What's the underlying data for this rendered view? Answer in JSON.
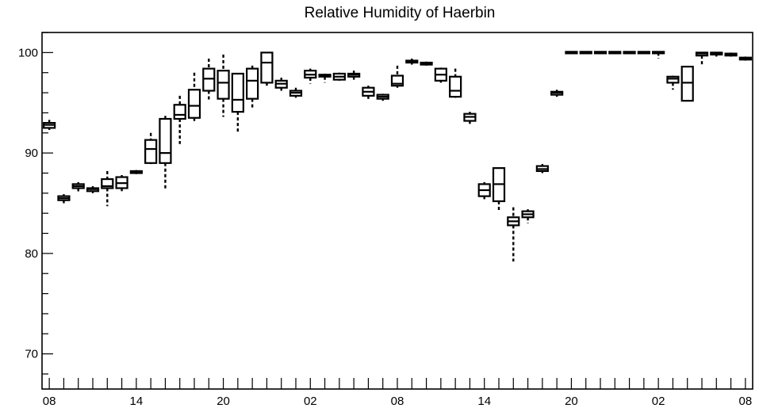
{
  "chart_data": {
    "type": "box",
    "title": "Relative Humidity of Haerbin",
    "xlabel": "",
    "ylabel": "",
    "ylim": [
      66.5,
      102
    ],
    "xlim": [
      -0.5,
      48.5
    ],
    "grid": false,
    "y_ticks": [
      70,
      80,
      90,
      100
    ],
    "x_tick_labels": [
      {
        "i": 0,
        "label": "08"
      },
      {
        "i": 6,
        "label": "14"
      },
      {
        "i": 12,
        "label": "20"
      },
      {
        "i": 18,
        "label": "02"
      },
      {
        "i": 24,
        "label": "08"
      },
      {
        "i": 30,
        "label": "14"
      },
      {
        "i": 36,
        "label": "20"
      },
      {
        "i": 42,
        "label": "02"
      },
      {
        "i": 48,
        "label": "08"
      }
    ],
    "boxes": [
      {
        "i": 0,
        "min": 92.3,
        "q1": 92.5,
        "med": 92.8,
        "q3": 93.0,
        "max": 93.3
      },
      {
        "i": 1,
        "min": 85.0,
        "q1": 85.3,
        "med": 85.5,
        "q3": 85.7,
        "max": 85.9
      },
      {
        "i": 2,
        "min": 86.0,
        "q1": 86.5,
        "med": 86.7,
        "q3": 86.9,
        "max": 87.1
      },
      {
        "i": 3,
        "min": 86.0,
        "q1": 86.2,
        "med": 86.4,
        "q3": 86.5,
        "max": 86.7
      },
      {
        "i": 4,
        "min": 84.7,
        "q1": 86.5,
        "med": 86.7,
        "q3": 87.4,
        "max": 88.2
      },
      {
        "i": 5,
        "min": 86.2,
        "q1": 86.5,
        "med": 87.0,
        "q3": 87.6,
        "max": 87.8
      },
      {
        "i": 6,
        "min": 87.9,
        "q1": 88.0,
        "med": 88.1,
        "q3": 88.2,
        "max": 88.3
      },
      {
        "i": 7,
        "min": 88.9,
        "q1": 89.0,
        "med": 90.4,
        "q3": 91.3,
        "max": 92.0
      },
      {
        "i": 8,
        "min": 86.4,
        "q1": 89.0,
        "med": 90.0,
        "q3": 93.4,
        "max": 93.7
      },
      {
        "i": 9,
        "min": 90.9,
        "q1": 93.4,
        "med": 93.8,
        "q3": 94.8,
        "max": 95.7
      },
      {
        "i": 10,
        "min": 93.0,
        "q1": 93.5,
        "med": 94.7,
        "q3": 96.3,
        "max": 98.0
      },
      {
        "i": 11,
        "min": 95.2,
        "q1": 96.2,
        "med": 97.4,
        "q3": 98.4,
        "max": 99.4
      },
      {
        "i": 12,
        "min": 93.6,
        "q1": 95.4,
        "med": 97.0,
        "q3": 98.2,
        "max": 99.8
      },
      {
        "i": 13,
        "min": 92.1,
        "q1": 94.1,
        "med": 95.3,
        "q3": 97.9,
        "max": 97.9
      },
      {
        "i": 14,
        "min": 94.3,
        "q1": 95.4,
        "med": 97.2,
        "q3": 98.4,
        "max": 98.7
      },
      {
        "i": 15,
        "min": 96.7,
        "q1": 97.0,
        "med": 99.0,
        "q3": 100.0,
        "max": 100.0
      },
      {
        "i": 16,
        "min": 96.2,
        "q1": 96.5,
        "med": 96.9,
        "q3": 97.2,
        "max": 97.5
      },
      {
        "i": 17,
        "min": 95.5,
        "q1": 95.7,
        "med": 96.0,
        "q3": 96.2,
        "max": 96.5
      },
      {
        "i": 18,
        "min": 96.9,
        "q1": 97.5,
        "med": 97.8,
        "q3": 98.2,
        "max": 98.4
      },
      {
        "i": 19,
        "min": 97.0,
        "q1": 97.6,
        "med": 97.7,
        "q3": 97.8,
        "max": 97.9
      },
      {
        "i": 20,
        "min": 97.2,
        "q1": 97.3,
        "med": 97.6,
        "q3": 97.9,
        "max": 98.0
      },
      {
        "i": 21,
        "min": 97.3,
        "q1": 97.6,
        "med": 97.8,
        "q3": 97.9,
        "max": 98.2
      },
      {
        "i": 22,
        "min": 95.3,
        "q1": 95.7,
        "med": 96.1,
        "q3": 96.5,
        "max": 96.7
      },
      {
        "i": 23,
        "min": 95.2,
        "q1": 95.4,
        "med": 95.6,
        "q3": 95.8,
        "max": 95.9
      },
      {
        "i": 24,
        "min": 96.5,
        "q1": 96.7,
        "med": 96.9,
        "q3": 97.7,
        "max": 98.7
      },
      {
        "i": 25,
        "min": 98.8,
        "q1": 99.0,
        "med": 99.1,
        "q3": 99.2,
        "max": 99.4
      },
      {
        "i": 26,
        "min": 98.7,
        "q1": 98.8,
        "med": 98.9,
        "q3": 99.0,
        "max": 99.1
      },
      {
        "i": 27,
        "min": 97.0,
        "q1": 97.2,
        "med": 97.8,
        "q3": 98.4,
        "max": 98.5
      },
      {
        "i": 28,
        "min": 95.5,
        "q1": 95.6,
        "med": 96.2,
        "q3": 97.6,
        "max": 98.4
      },
      {
        "i": 29,
        "min": 92.9,
        "q1": 93.2,
        "med": 93.6,
        "q3": 93.9,
        "max": 94.1
      },
      {
        "i": 30,
        "min": 85.4,
        "q1": 85.7,
        "med": 86.3,
        "q3": 86.9,
        "max": 87.1
      },
      {
        "i": 31,
        "min": 84.1,
        "q1": 85.2,
        "med": 86.9,
        "q3": 88.5,
        "max": 88.5
      },
      {
        "i": 32,
        "min": 79.2,
        "q1": 82.8,
        "med": 83.2,
        "q3": 83.6,
        "max": 84.6
      },
      {
        "i": 33,
        "min": 83.0,
        "q1": 83.6,
        "med": 83.9,
        "q3": 84.2,
        "max": 84.4
      },
      {
        "i": 34,
        "min": 88.0,
        "q1": 88.2,
        "med": 88.4,
        "q3": 88.7,
        "max": 88.9
      },
      {
        "i": 35,
        "min": 95.6,
        "q1": 95.8,
        "med": 96.0,
        "q3": 96.1,
        "max": 96.3
      },
      {
        "i": 36,
        "min": 100.0,
        "q1": 100.0,
        "med": 100.0,
        "q3": 100.0,
        "max": 100.0
      },
      {
        "i": 37,
        "min": 100.0,
        "q1": 100.0,
        "med": 100.0,
        "q3": 100.0,
        "max": 100.0
      },
      {
        "i": 38,
        "min": 100.0,
        "q1": 100.0,
        "med": 100.0,
        "q3": 100.0,
        "max": 100.0
      },
      {
        "i": 39,
        "min": 100.0,
        "q1": 100.0,
        "med": 100.0,
        "q3": 100.0,
        "max": 100.0
      },
      {
        "i": 40,
        "min": 100.0,
        "q1": 100.0,
        "med": 100.0,
        "q3": 100.0,
        "max": 100.0
      },
      {
        "i": 41,
        "min": 100.0,
        "q1": 100.0,
        "med": 100.0,
        "q3": 100.0,
        "max": 100.0
      },
      {
        "i": 42,
        "min": 99.4,
        "q1": 100.0,
        "med": 100.0,
        "q3": 100.0,
        "max": 100.0
      },
      {
        "i": 43,
        "min": 96.3,
        "q1": 97.0,
        "med": 97.4,
        "q3": 97.6,
        "max": 97.7
      },
      {
        "i": 44,
        "min": 95.2,
        "q1": 95.2,
        "med": 97.0,
        "q3": 98.6,
        "max": 98.6
      },
      {
        "i": 45,
        "min": 98.6,
        "q1": 99.7,
        "med": 99.9,
        "q3": 100.0,
        "max": 100.0
      },
      {
        "i": 46,
        "min": 99.6,
        "q1": 99.8,
        "med": 99.9,
        "q3": 100.0,
        "max": 100.0
      },
      {
        "i": 47,
        "min": 99.6,
        "q1": 99.7,
        "med": 99.8,
        "q3": 99.9,
        "max": 100.0
      },
      {
        "i": 48,
        "min": 99.2,
        "q1": 99.3,
        "med": 99.4,
        "q3": 99.5,
        "max": 99.6
      }
    ]
  }
}
